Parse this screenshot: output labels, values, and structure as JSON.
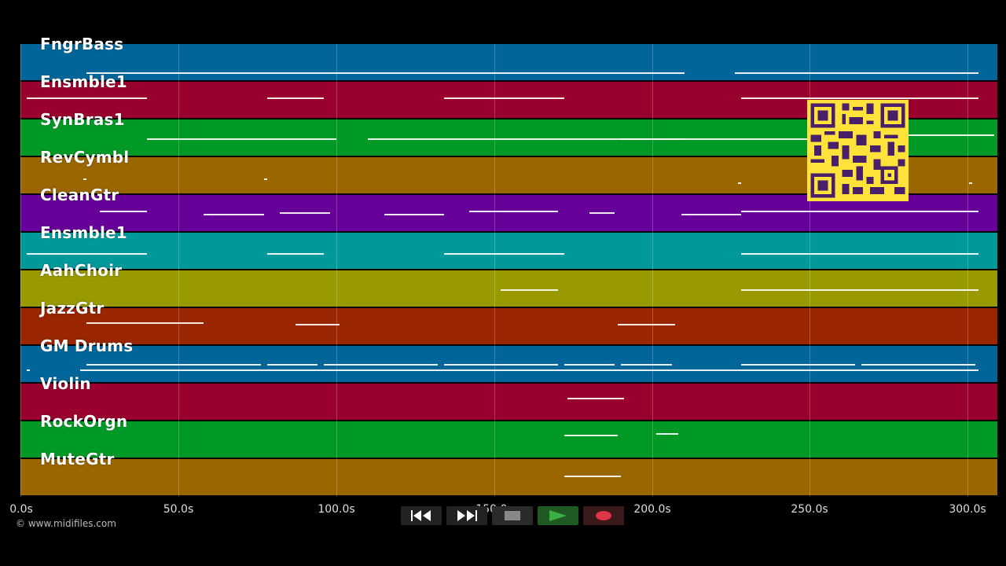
{
  "tracks": [
    {
      "name": "FngrBass",
      "color": "#006699"
    },
    {
      "name": "Ensmble1",
      "color": "#99002e"
    },
    {
      "name": "SynBras1",
      "color": "#009926"
    },
    {
      "name": "RevCymbl",
      "color": "#996600"
    },
    {
      "name": "CleanGtr",
      "color": "#660099"
    },
    {
      "name": "Ensmble1",
      "color": "#009999"
    },
    {
      "name": "AahChoir",
      "color": "#999900"
    },
    {
      "name": "JazzGtr",
      "color": "#992600"
    },
    {
      "name": "GM Drums",
      "color": "#006699"
    },
    {
      "name": "Violin",
      "color": "#99002e"
    },
    {
      "name": "RockOrgn",
      "color": "#009926"
    },
    {
      "name": "MuteGtr",
      "color": "#996600"
    }
  ],
  "timeline": {
    "ticks": [
      "0.0s",
      "50.0s",
      "100.0s",
      "150.0s",
      "200.0s",
      "250.0s",
      "300.0s"
    ],
    "max_seconds": 309
  },
  "copyright": "© www.midifiles.com",
  "transport": {
    "rewind": "rewind-icon",
    "fast_forward": "fast-forward-icon",
    "stop": "stop-icon",
    "play": "play-icon",
    "record": "record-icon",
    "colors": {
      "play": "#1f8a2e",
      "record": "#7a1020",
      "default": "#222222"
    }
  },
  "qr_code": "qr-code-icon"
}
